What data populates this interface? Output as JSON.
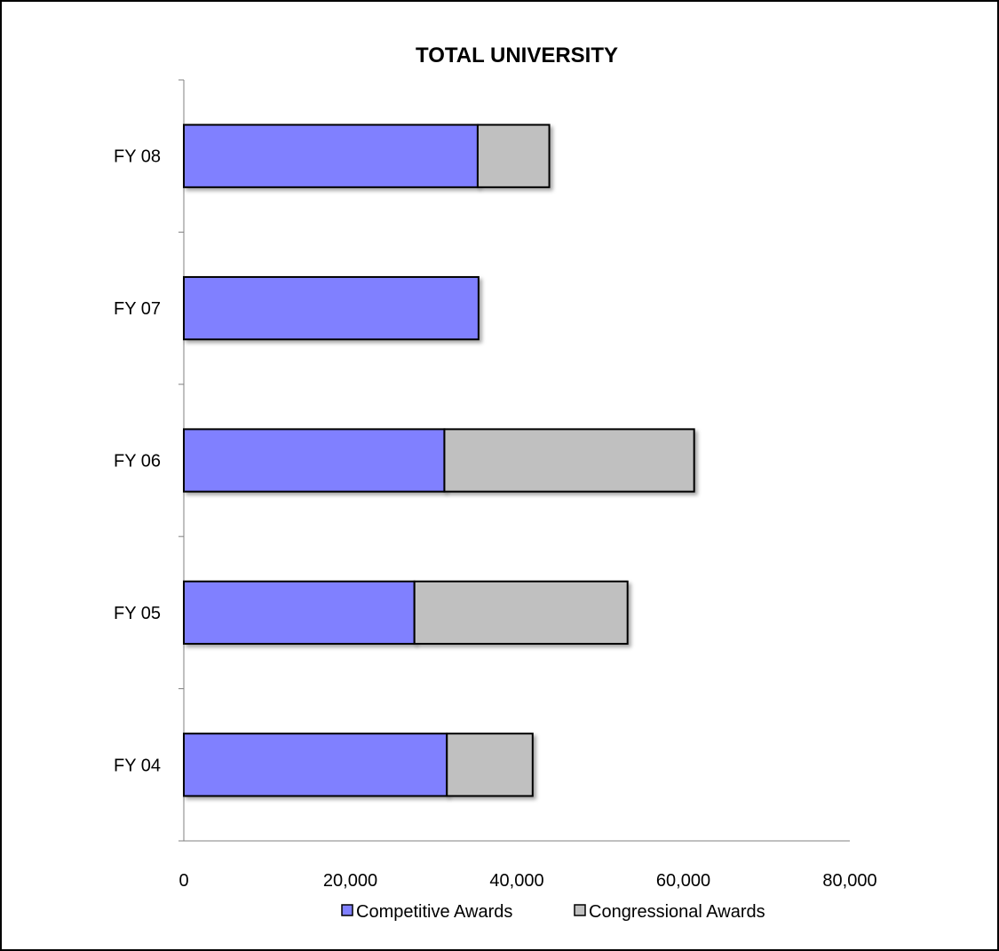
{
  "chart_data": {
    "type": "bar",
    "orientation": "horizontal",
    "stacked": true,
    "title": "TOTAL UNIVERSITY",
    "categories": [
      "FY 08",
      "FY 07",
      "FY 06",
      "FY 05",
      "FY 04"
    ],
    "series": [
      {
        "name": "Competitive Awards",
        "values": [
          35300,
          35400,
          31300,
          27700,
          31600
        ],
        "color": "#8080ff"
      },
      {
        "name": "Congressional Awards",
        "values": [
          8600,
          0,
          30000,
          25600,
          10300
        ],
        "color": "#c0c0c0"
      }
    ],
    "xlim": [
      0,
      80000
    ],
    "xticks": [
      0,
      20000,
      40000,
      60000,
      80000
    ],
    "xtick_labels": [
      "0",
      "20,000",
      "40,000",
      "60,000",
      "80,000"
    ],
    "grid": false,
    "legend": "bottom"
  }
}
